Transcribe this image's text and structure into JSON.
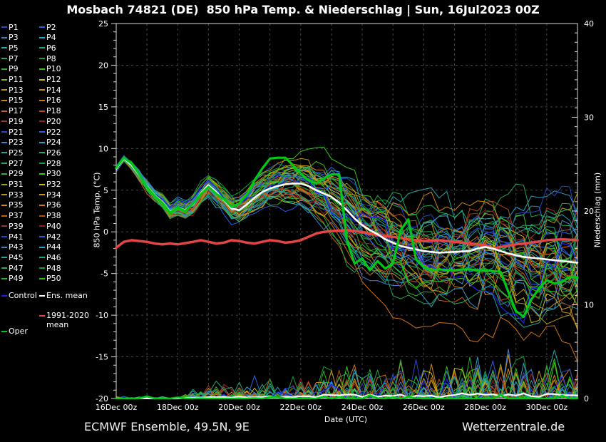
{
  "title": "Mosbach 74821 (DE)  850 hPa Temp. & Niederschlag | Sun, 16Jul2023 00Z",
  "footer": {
    "left": "ECMWF Ensemble, 49.5N, 9E",
    "right": "Wetterzentrale.de"
  },
  "legend": {
    "members": [
      "P1",
      "P2",
      "P3",
      "P4",
      "P5",
      "P6",
      "P7",
      "P8",
      "P9",
      "P10",
      "P11",
      "P12",
      "P13",
      "P14",
      "P15",
      "P16",
      "P17",
      "P18",
      "P19",
      "P20",
      "P21",
      "P22",
      "P23",
      "P24",
      "P25",
      "P26",
      "P27",
      "P28",
      "P29",
      "P30",
      "P31",
      "P32",
      "P33",
      "P34",
      "P35",
      "P36",
      "P37",
      "P38",
      "P39",
      "P40",
      "P41",
      "P42",
      "P43",
      "P44",
      "P45",
      "P46",
      "P47",
      "P48",
      "P49",
      "P50"
    ],
    "control_label": "Control",
    "ens_mean_label": "Ens. mean",
    "climate_label_line1": "1991-2020",
    "climate_label_line2": "mean",
    "oper_label": "Oper"
  },
  "colors": {
    "background": "#000000",
    "member_palette": [
      "#2846c8",
      "#2b5fe0",
      "#3c82d2",
      "#28a0c8",
      "#1fa6a6",
      "#23a878",
      "#23a855",
      "#14a03c",
      "#28b428",
      "#32c814",
      "#96aa14",
      "#c8be14",
      "#b49614",
      "#c89614",
      "#d28714",
      "#d27314",
      "#c85f14",
      "#b94b14",
      "#a03228",
      "#911e1e"
    ],
    "control": "#1e1ee6",
    "ens_mean": "#ffffff",
    "climate_mean": "#e64545",
    "oper": "#00c819",
    "grid": "#474747",
    "axis": "#d8d8d8",
    "text": "#ffffff"
  },
  "axes": {
    "left": {
      "label": "850 hPa Temp. (°C)",
      "ticks": [
        25,
        20,
        15,
        10,
        5,
        0,
        -5,
        -10,
        -15,
        -20
      ],
      "range": [
        -20,
        25
      ]
    },
    "right": {
      "label": "Niederschlag (mm)",
      "ticks": [
        40,
        30,
        20,
        10,
        0
      ],
      "range": [
        0,
        40
      ]
    },
    "x": {
      "label": "Date (UTC)",
      "tick_labels": [
        "16Dec 00z",
        "18Dec 00z",
        "20Dec 00z",
        "22Dec 00z",
        "24Dec 00z",
        "26Dec 00z",
        "28Dec 00z",
        "30Dec 00z"
      ],
      "tick_days": [
        0,
        2,
        4,
        6,
        8,
        10,
        12,
        14
      ],
      "range_days": [
        0,
        15
      ]
    }
  },
  "chart_data": {
    "type": "line",
    "title": "Mosbach 74821 (DE)  850 hPa Temp. & Niederschlag | Sun, 16Jul2023 00Z",
    "x_unit": "days since 16Dec 00z (UTC)",
    "x_days": [
      0,
      0.25,
      0.5,
      0.75,
      1,
      1.25,
      1.5,
      1.75,
      2,
      2.25,
      2.5,
      2.75,
      3,
      3.25,
      3.5,
      3.75,
      4,
      4.25,
      4.5,
      4.75,
      5,
      5.25,
      5.5,
      5.75,
      6,
      6.25,
      6.5,
      6.75,
      7,
      7.25,
      7.5,
      7.75,
      8,
      8.25,
      8.5,
      8.75,
      9,
      9.25,
      9.5,
      9.75,
      10,
      10.25,
      10.5,
      10.75,
      11,
      11.25,
      11.5,
      11.75,
      12,
      12.25,
      12.5,
      12.75,
      13,
      13.25,
      13.5,
      13.75,
      14,
      14.25,
      14.5,
      14.75,
      15
    ],
    "ylim_temp": [
      -20,
      25
    ],
    "ylim_precip": [
      0,
      40
    ],
    "grid": "dashed gray: vertical every 1 day, horizontal every 5 °C",
    "legend_position": "left",
    "series": [
      {
        "name": "Ens. mean",
        "axis": "temp",
        "color": "#ffffff",
        "width": 2.6,
        "values": [
          7.6,
          8.8,
          8.0,
          6.8,
          5.5,
          4.4,
          3.6,
          2.4,
          2.9,
          2.6,
          3.3,
          4.6,
          5.6,
          4.8,
          3.8,
          2.8,
          2.6,
          3.3,
          4.1,
          4.8,
          5.2,
          5.5,
          5.7,
          5.8,
          5.8,
          5.5,
          5.0,
          4.6,
          4.2,
          3.5,
          2.6,
          1.6,
          0.8,
          0.2,
          -0.3,
          -0.9,
          -1.3,
          -1.7,
          -1.9,
          -2.1,
          -2.3,
          -2.4,
          -2.5,
          -2.45,
          -2.4,
          -2.35,
          -2.3,
          -2.0,
          -1.8,
          -2.0,
          -2.3,
          -2.6,
          -2.8,
          -3.0,
          -3.1,
          -3.2,
          -3.3,
          -3.4,
          -3.5,
          -3.6,
          -3.7
        ]
      },
      {
        "name": "Oper",
        "axis": "temp",
        "color": "#00c819",
        "width": 3.2,
        "values": [
          7.7,
          8.9,
          8.2,
          6.9,
          5.4,
          4.3,
          3.5,
          2.3,
          2.9,
          2.5,
          3.4,
          4.5,
          5.4,
          4.6,
          3.9,
          3.0,
          3.4,
          4.5,
          6.2,
          7.6,
          8.8,
          8.9,
          8.9,
          8.0,
          7.0,
          6.2,
          5.8,
          6.4,
          6.9,
          6.9,
          -1.0,
          -3.8,
          -3.2,
          -4.6,
          -3.5,
          -4.4,
          -3.8,
          0.2,
          1.5,
          -3.3,
          -4.2,
          -4.6,
          -4.5,
          -4.6,
          -4.6,
          -4.5,
          -4.5,
          -4.6,
          -4.6,
          -4.7,
          -4.8,
          -7.2,
          -9.5,
          -10.2,
          -8.1,
          -6.8,
          -5.8,
          -6.2,
          -6.0,
          -5.4,
          -5.5
        ]
      },
      {
        "name": "1991-2020 mean",
        "axis": "temp",
        "color": "#e64545",
        "width": 3.5,
        "values": [
          -1.9,
          -1.2,
          -1.0,
          -1.1,
          -1.2,
          -1.4,
          -1.5,
          -1.4,
          -1.5,
          -1.35,
          -1.2,
          -1.0,
          -1.2,
          -1.4,
          -1.3,
          -1.0,
          -1.1,
          -1.3,
          -1.4,
          -1.2,
          -1.0,
          -1.1,
          -1.3,
          -1.2,
          -1.0,
          -0.6,
          -0.2,
          0.0,
          0.1,
          0.15,
          0.2,
          0.1,
          0.0,
          -0.2,
          -0.4,
          -0.5,
          -0.6,
          -0.75,
          -0.9,
          -1.0,
          -1.1,
          -1.05,
          -1.0,
          -1.1,
          -1.2,
          -1.3,
          -1.4,
          -1.5,
          -1.6,
          -2.0,
          -1.8,
          -1.65,
          -1.5,
          -1.4,
          -1.3,
          -1.15,
          -1.0,
          -0.95,
          -0.9,
          -0.95,
          -1.0
        ]
      }
    ],
    "render_hints": {
      "ensemble_count": 50,
      "seed": 20231216,
      "spread_by_day": [
        0.3,
        0.5,
        0.7,
        0.9,
        1.2,
        1.5,
        1.9,
        2.6,
        3.2,
        3.7,
        4.1,
        4.4,
        4.7,
        4.9,
        5.1,
        5.3
      ],
      "precip_amp_by_day": [
        0,
        0,
        0,
        2.2,
        2.6,
        2.6,
        3.0,
        4.2,
        4.2,
        4.6,
        5.0,
        5.0,
        5.6,
        5.6,
        5.6,
        5.0
      ],
      "precip_max_mm": 6
    }
  }
}
